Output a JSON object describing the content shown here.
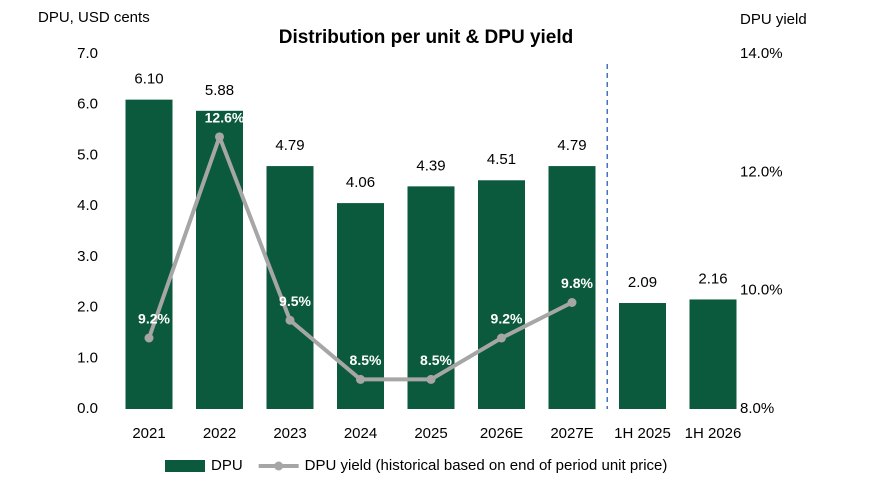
{
  "chart_data": {
    "type": "bar",
    "title": "Distribution per unit & DPU yield",
    "y_axis_label": "DPU, USD cents",
    "y2_axis_label": "DPU yield",
    "categories": [
      "2021",
      "2022",
      "2023",
      "2024",
      "2025",
      "2026E",
      "2027E",
      "1H 2025",
      "1H 2026"
    ],
    "series": [
      {
        "name": "DPU",
        "type": "bar",
        "color": "#0b5a3e",
        "values": [
          6.1,
          5.88,
          4.79,
          4.06,
          4.39,
          4.51,
          4.79,
          2.09,
          2.16
        ],
        "value_labels": [
          "6.10",
          "5.88",
          "4.79",
          "4.06",
          "4.39",
          "4.51",
          "4.79",
          "2.09",
          "2.16"
        ]
      },
      {
        "name": "DPU yield (historical based on end of period unit price)",
        "type": "line",
        "axis": "y2",
        "color": "#a6a6a6",
        "values": [
          9.2,
          12.6,
          9.5,
          8.5,
          8.5,
          9.2,
          9.8,
          null,
          null
        ],
        "value_labels": [
          "9.2%",
          "12.6%",
          "9.5%",
          "8.5%",
          "8.5%",
          "9.2%",
          "9.8%",
          null,
          null
        ]
      }
    ],
    "ylim": [
      0,
      7
    ],
    "yticks": [
      {
        "value": 0,
        "label": "0.0"
      },
      {
        "value": 1,
        "label": "1.0"
      },
      {
        "value": 2,
        "label": "2.0"
      },
      {
        "value": 3,
        "label": "3.0"
      },
      {
        "value": 4,
        "label": "4.0"
      },
      {
        "value": 5,
        "label": "5.0"
      },
      {
        "value": 6,
        "label": "6.0"
      },
      {
        "value": 7,
        "label": "7.0"
      }
    ],
    "y2lim": [
      8,
      14
    ],
    "y2ticks": [
      {
        "value": 8,
        "label": "8.0%"
      },
      {
        "value": 10,
        "label": "10.0%"
      },
      {
        "value": 12,
        "label": "12.0%"
      },
      {
        "value": 14,
        "label": "14.0%"
      }
    ],
    "grid": false,
    "legend": "bottom"
  }
}
